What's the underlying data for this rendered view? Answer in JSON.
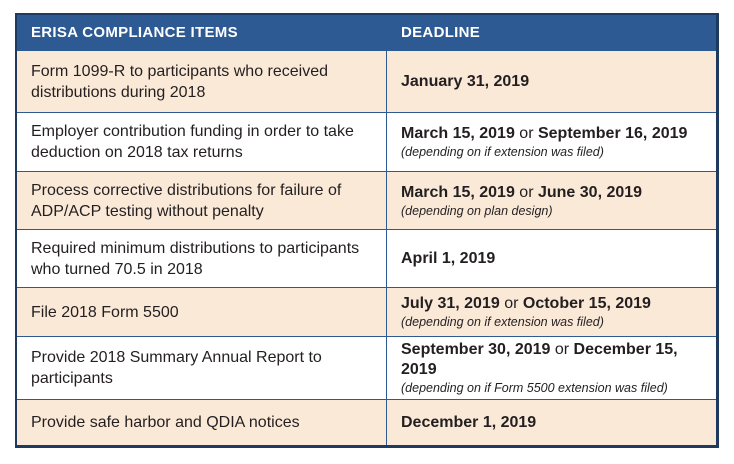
{
  "table": {
    "headers": {
      "items": "ERISA COMPLIANCE ITEMS",
      "deadline": "DEADLINE"
    },
    "rows": [
      {
        "item": "Form 1099-R to participants who received distributions during 2018",
        "deadline": {
          "date1": "January 31, 2019"
        }
      },
      {
        "item": "Employer contribution funding in order to take deduction on 2018 tax returns",
        "deadline": {
          "date1": "March 15, 2019",
          "connector": " or ",
          "date2": "September 16, 2019",
          "note": "(depending on if extension was filed)"
        }
      },
      {
        "item": "Process corrective distributions for failure of ADP/ACP testing without penalty",
        "deadline": {
          "date1": "March 15, 2019",
          "connector": " or ",
          "date2": "June 30, 2019",
          "note": "(depending on plan design)"
        }
      },
      {
        "item": "Required minimum distributions to participants who turned 70.5 in 2018",
        "deadline": {
          "date1": "April 1, 2019"
        }
      },
      {
        "item": "File 2018 Form 5500",
        "deadline": {
          "date1": "July 31, 2019",
          "connector": " or ",
          "date2": "October 15, 2019",
          "note": "(depending on if extension was filed)"
        }
      },
      {
        "item": "Provide 2018 Summary Annual Report to participants",
        "deadline": {
          "date1": "September 30, 2019",
          "connector": " or ",
          "date2": "December 15, 2019",
          "note": "(depending on if Form 5500 extension was filed)"
        }
      },
      {
        "item": "Provide safe harbor and QDIA notices",
        "deadline": {
          "date1": "December 1, 2019"
        }
      }
    ],
    "colors": {
      "header_bg": "#2e5a94",
      "header_text": "#ffffff",
      "row_cream_bg": "#fbe9d8",
      "row_white_bg": "#ffffff",
      "grid_line": "#2e5a94",
      "outer_border": "#1e3a5f",
      "body_text": "#231f20"
    }
  }
}
